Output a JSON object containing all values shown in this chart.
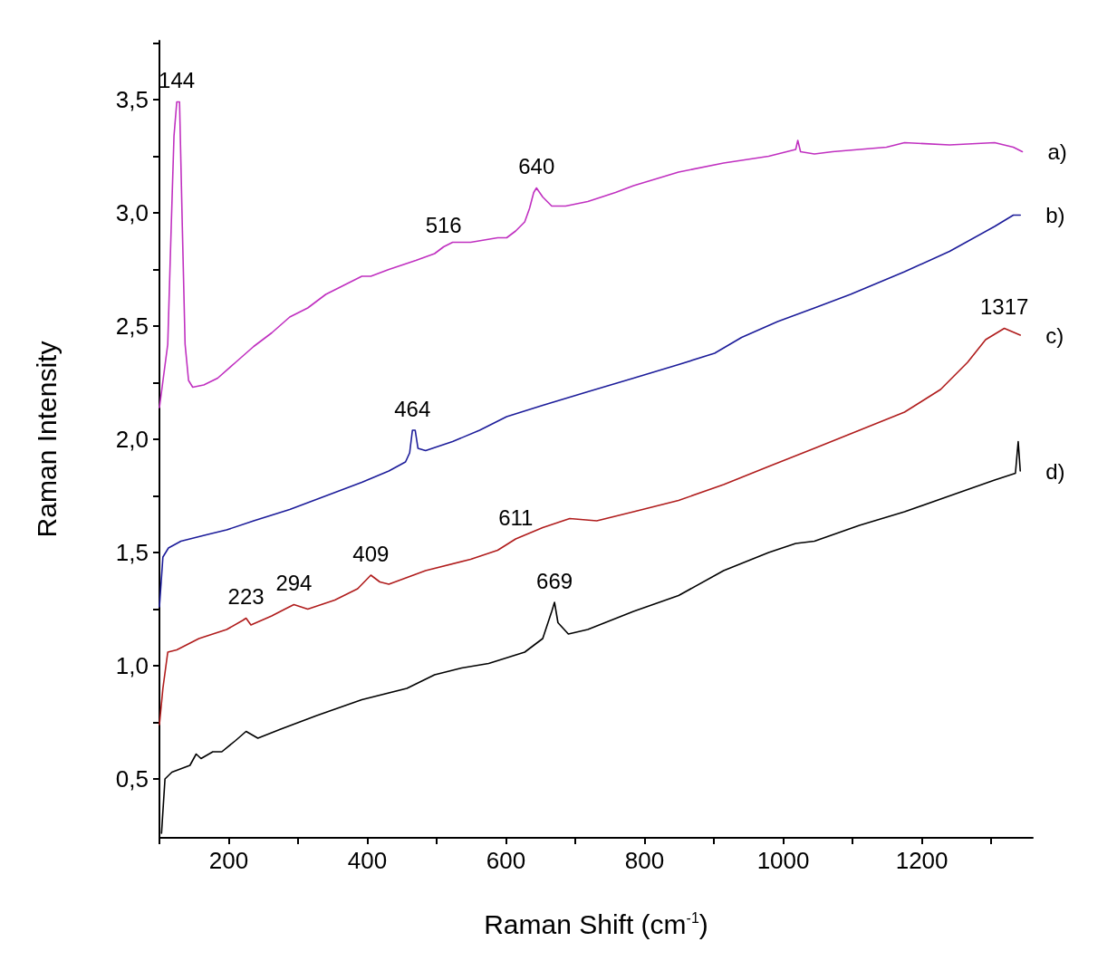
{
  "chart_data": {
    "type": "line",
    "xlabel": "Raman Shift (cm$^{-1}$)",
    "ylabel": "Raman Intensity",
    "xlim": [
      100,
      1360
    ],
    "ylim": [
      0.24,
      3.76
    ],
    "xticks": [
      {
        "value": 100,
        "label": null
      },
      200,
      {
        "value": 300,
        "label": null
      },
      400,
      {
        "value": 500,
        "label": null
      },
      600,
      {
        "value": 700,
        "label": null
      },
      800,
      {
        "value": 900,
        "label": null
      },
      1000,
      {
        "value": 1100,
        "label": null
      },
      1200,
      {
        "value": 1300,
        "label": null
      }
    ],
    "yticks": [
      {
        "value": 0.5,
        "label": "0,5"
      },
      {
        "value": 0.75,
        "label": null
      },
      {
        "value": 1,
        "label": "1,0"
      },
      {
        "value": 1.25,
        "label": null
      },
      {
        "value": 1.5,
        "label": "1,5"
      },
      {
        "value": 1.75,
        "label": null
      },
      {
        "value": 2,
        "label": "2,0"
      },
      {
        "value": 2.25,
        "label": null
      },
      {
        "value": 2.5,
        "label": "2,5"
      },
      {
        "value": 2.75,
        "label": null
      },
      {
        "value": 3,
        "label": "3,0"
      },
      {
        "value": 3.25,
        "label": null
      },
      {
        "value": 3.5,
        "label": "3,5"
      },
      {
        "value": 3.75,
        "label": null
      }
    ],
    "grid": false,
    "legend": false,
    "marker": "none",
    "line_style": "solid",
    "series": [
      {
        "name": "a)",
        "color": "#c030c0",
        "x": [
          100,
          112,
          117,
          121,
          125,
          129,
          133,
          137,
          142,
          148,
          164,
          184,
          210,
          236,
          262,
          288,
          314,
          340,
          366,
          392,
          405,
          431,
          470,
          497,
          510,
          523,
          549,
          588,
          601,
          614,
          627,
          634,
          640,
          644,
          653,
          666,
          686,
          718,
          758,
          784,
          849,
          914,
          979,
          1018,
          1021,
          1025,
          1045,
          1071,
          1110,
          1149,
          1175,
          1240,
          1305,
          1332,
          1345
        ],
        "values": [
          2.14,
          2.42,
          2.94,
          3.34,
          3.49,
          3.49,
          2.94,
          2.42,
          2.26,
          2.23,
          2.24,
          2.27,
          2.34,
          2.41,
          2.47,
          2.54,
          2.58,
          2.64,
          2.68,
          2.72,
          2.72,
          2.75,
          2.79,
          2.82,
          2.85,
          2.87,
          2.87,
          2.89,
          2.89,
          2.92,
          2.96,
          3.02,
          3.09,
          3.11,
          3.07,
          3.03,
          3.03,
          3.05,
          3.09,
          3.12,
          3.18,
          3.22,
          3.25,
          3.28,
          3.32,
          3.27,
          3.26,
          3.27,
          3.28,
          3.29,
          3.31,
          3.3,
          3.31,
          3.29,
          3.27
        ]
      },
      {
        "name": "b)",
        "color": "#1c1c9a",
        "x": [
          100,
          105,
          113,
          131,
          170,
          197,
          236,
          288,
          340,
          392,
          431,
          455,
          461,
          465,
          469,
          473,
          484,
          523,
          562,
          601,
          653,
          718,
          784,
          849,
          901,
          940,
          992,
          1045,
          1097,
          1175,
          1240,
          1305,
          1332,
          1342
        ],
        "values": [
          1.26,
          1.48,
          1.52,
          1.55,
          1.58,
          1.6,
          1.64,
          1.69,
          1.75,
          1.81,
          1.86,
          1.9,
          1.94,
          2.04,
          2.04,
          1.96,
          1.95,
          1.99,
          2.04,
          2.1,
          2.15,
          2.21,
          2.27,
          2.33,
          2.38,
          2.45,
          2.52,
          2.58,
          2.64,
          2.74,
          2.83,
          2.94,
          2.99,
          2.99
        ]
      },
      {
        "name": "c)",
        "color": "#b01c1c",
        "x": [
          100,
          105,
          112,
          125,
          157,
          197,
          220,
          225,
          232,
          262,
          281,
          294,
          314,
          353,
          386,
          405,
          418,
          431,
          484,
          549,
          588,
          614,
          653,
          692,
          731,
          784,
          849,
          914,
          979,
          1045,
          1110,
          1175,
          1227,
          1266,
          1292,
          1319,
          1342
        ],
        "values": [
          0.74,
          0.9,
          1.06,
          1.07,
          1.12,
          1.16,
          1.2,
          1.21,
          1.18,
          1.22,
          1.25,
          1.27,
          1.25,
          1.29,
          1.34,
          1.4,
          1.37,
          1.36,
          1.42,
          1.47,
          1.51,
          1.56,
          1.61,
          1.65,
          1.64,
          1.68,
          1.73,
          1.8,
          1.88,
          1.96,
          2.04,
          2.12,
          2.22,
          2.34,
          2.44,
          2.49,
          2.46
        ]
      },
      {
        "name": "d)",
        "color": "#000000",
        "x": [
          103,
          108,
          118,
          144,
          153,
          160,
          177,
          190,
          210,
          225,
          242,
          275,
          327,
          392,
          457,
          497,
          536,
          575,
          627,
          653,
          666,
          670,
          675,
          690,
          718,
          784,
          849,
          914,
          979,
          1018,
          1045,
          1110,
          1175,
          1240,
          1305,
          1335,
          1339,
          1342
        ],
        "values": [
          0.26,
          0.5,
          0.53,
          0.56,
          0.61,
          0.59,
          0.62,
          0.62,
          0.67,
          0.71,
          0.68,
          0.72,
          0.78,
          0.85,
          0.9,
          0.96,
          0.99,
          1.01,
          1.06,
          1.12,
          1.24,
          1.28,
          1.19,
          1.14,
          1.16,
          1.24,
          1.31,
          1.42,
          1.5,
          1.54,
          1.55,
          1.62,
          1.68,
          1.75,
          1.82,
          1.85,
          1.99,
          1.86
        ]
      }
    ],
    "annotations": [
      {
        "text": "144",
        "x": 125,
        "y": 3.49
      },
      {
        "text": "516",
        "x": 510,
        "y": 2.85
      },
      {
        "text": "640",
        "x": 644,
        "y": 3.11
      },
      {
        "text": "464",
        "x": 465,
        "y": 2.04
      },
      {
        "text": "1317",
        "x": 1319,
        "y": 2.49
      },
      {
        "text": "611",
        "x": 614,
        "y": 1.56
      },
      {
        "text": "409",
        "x": 405,
        "y": 1.4
      },
      {
        "text": "294",
        "x": 294,
        "y": 1.27
      },
      {
        "text": "223",
        "x": 225,
        "y": 1.21
      },
      {
        "text": "669",
        "x": 670,
        "y": 1.28
      }
    ]
  }
}
